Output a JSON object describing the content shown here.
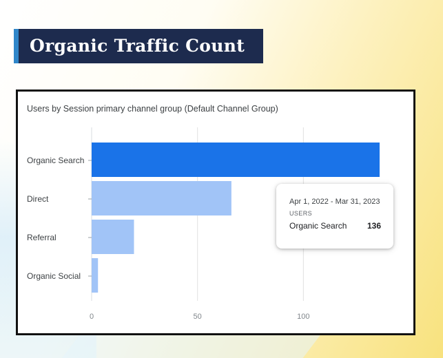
{
  "header": {
    "title": "Organic Traffic Count"
  },
  "card": {
    "title": "Users by Session primary channel group (Default Channel Group)"
  },
  "chart_data": {
    "type": "bar",
    "orientation": "horizontal",
    "title": "Users by Session primary channel group (Default Channel Group)",
    "categories": [
      "Organic Search",
      "Direct",
      "Referral",
      "Organic Social"
    ],
    "values": [
      136,
      66,
      20,
      3
    ],
    "xlim": [
      0,
      136
    ],
    "xticks": [
      0,
      50,
      100
    ],
    "grid": true,
    "colors": {
      "highlight": "#1a73e8",
      "normal": "#a1c4f7",
      "grid": "#e0e0e0"
    }
  },
  "tooltip": {
    "date_range": "Apr 1, 2022 - Mar 31, 2023",
    "metric": "USERS",
    "label": "Organic Search",
    "value": "136"
  }
}
